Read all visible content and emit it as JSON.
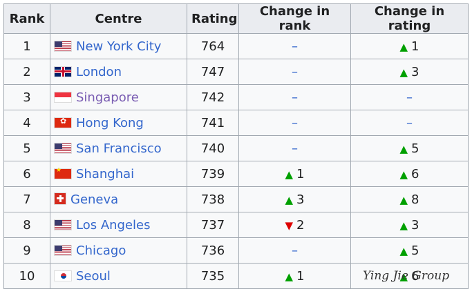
{
  "table": {
    "headers": [
      "Rank",
      "Centre",
      "Rating",
      "Change in rank",
      "Change in rating"
    ],
    "rows": [
      [
        "1",
        "New York City",
        "764",
        "–",
        {
          "trend": "up",
          "text": "1"
        }
      ],
      [
        "2",
        "London",
        "747",
        "–",
        {
          "trend": "up",
          "text": "3"
        }
      ],
      [
        "3",
        "Singapore",
        "742",
        "–",
        "–"
      ],
      [
        "4",
        "Hong Kong",
        "741",
        "–",
        "–"
      ],
      [
        "5",
        "San Francisco",
        "740",
        "–",
        {
          "trend": "up",
          "text": "5"
        }
      ],
      [
        "6",
        "Shanghai",
        "739",
        {
          "trend": "up",
          "text": "1"
        },
        {
          "trend": "up",
          "text": "6"
        }
      ],
      [
        "7",
        "Geneva",
        "738",
        {
          "trend": "up",
          "text": "3"
        },
        {
          "trend": "up",
          "text": "8"
        }
      ],
      [
        "8",
        "Los Angeles",
        "737",
        {
          "trend": "down",
          "text": "2"
        },
        {
          "trend": "up",
          "text": "3"
        }
      ],
      [
        "9",
        "Chicago",
        "736",
        "–",
        {
          "trend": "up",
          "text": "5"
        }
      ],
      [
        "10",
        "Seoul",
        "735",
        {
          "trend": "up",
          "text": "1"
        },
        {
          "trend": "up",
          "text": "6"
        }
      ]
    ]
  },
  "watermark": "Ying Jie Group"
}
